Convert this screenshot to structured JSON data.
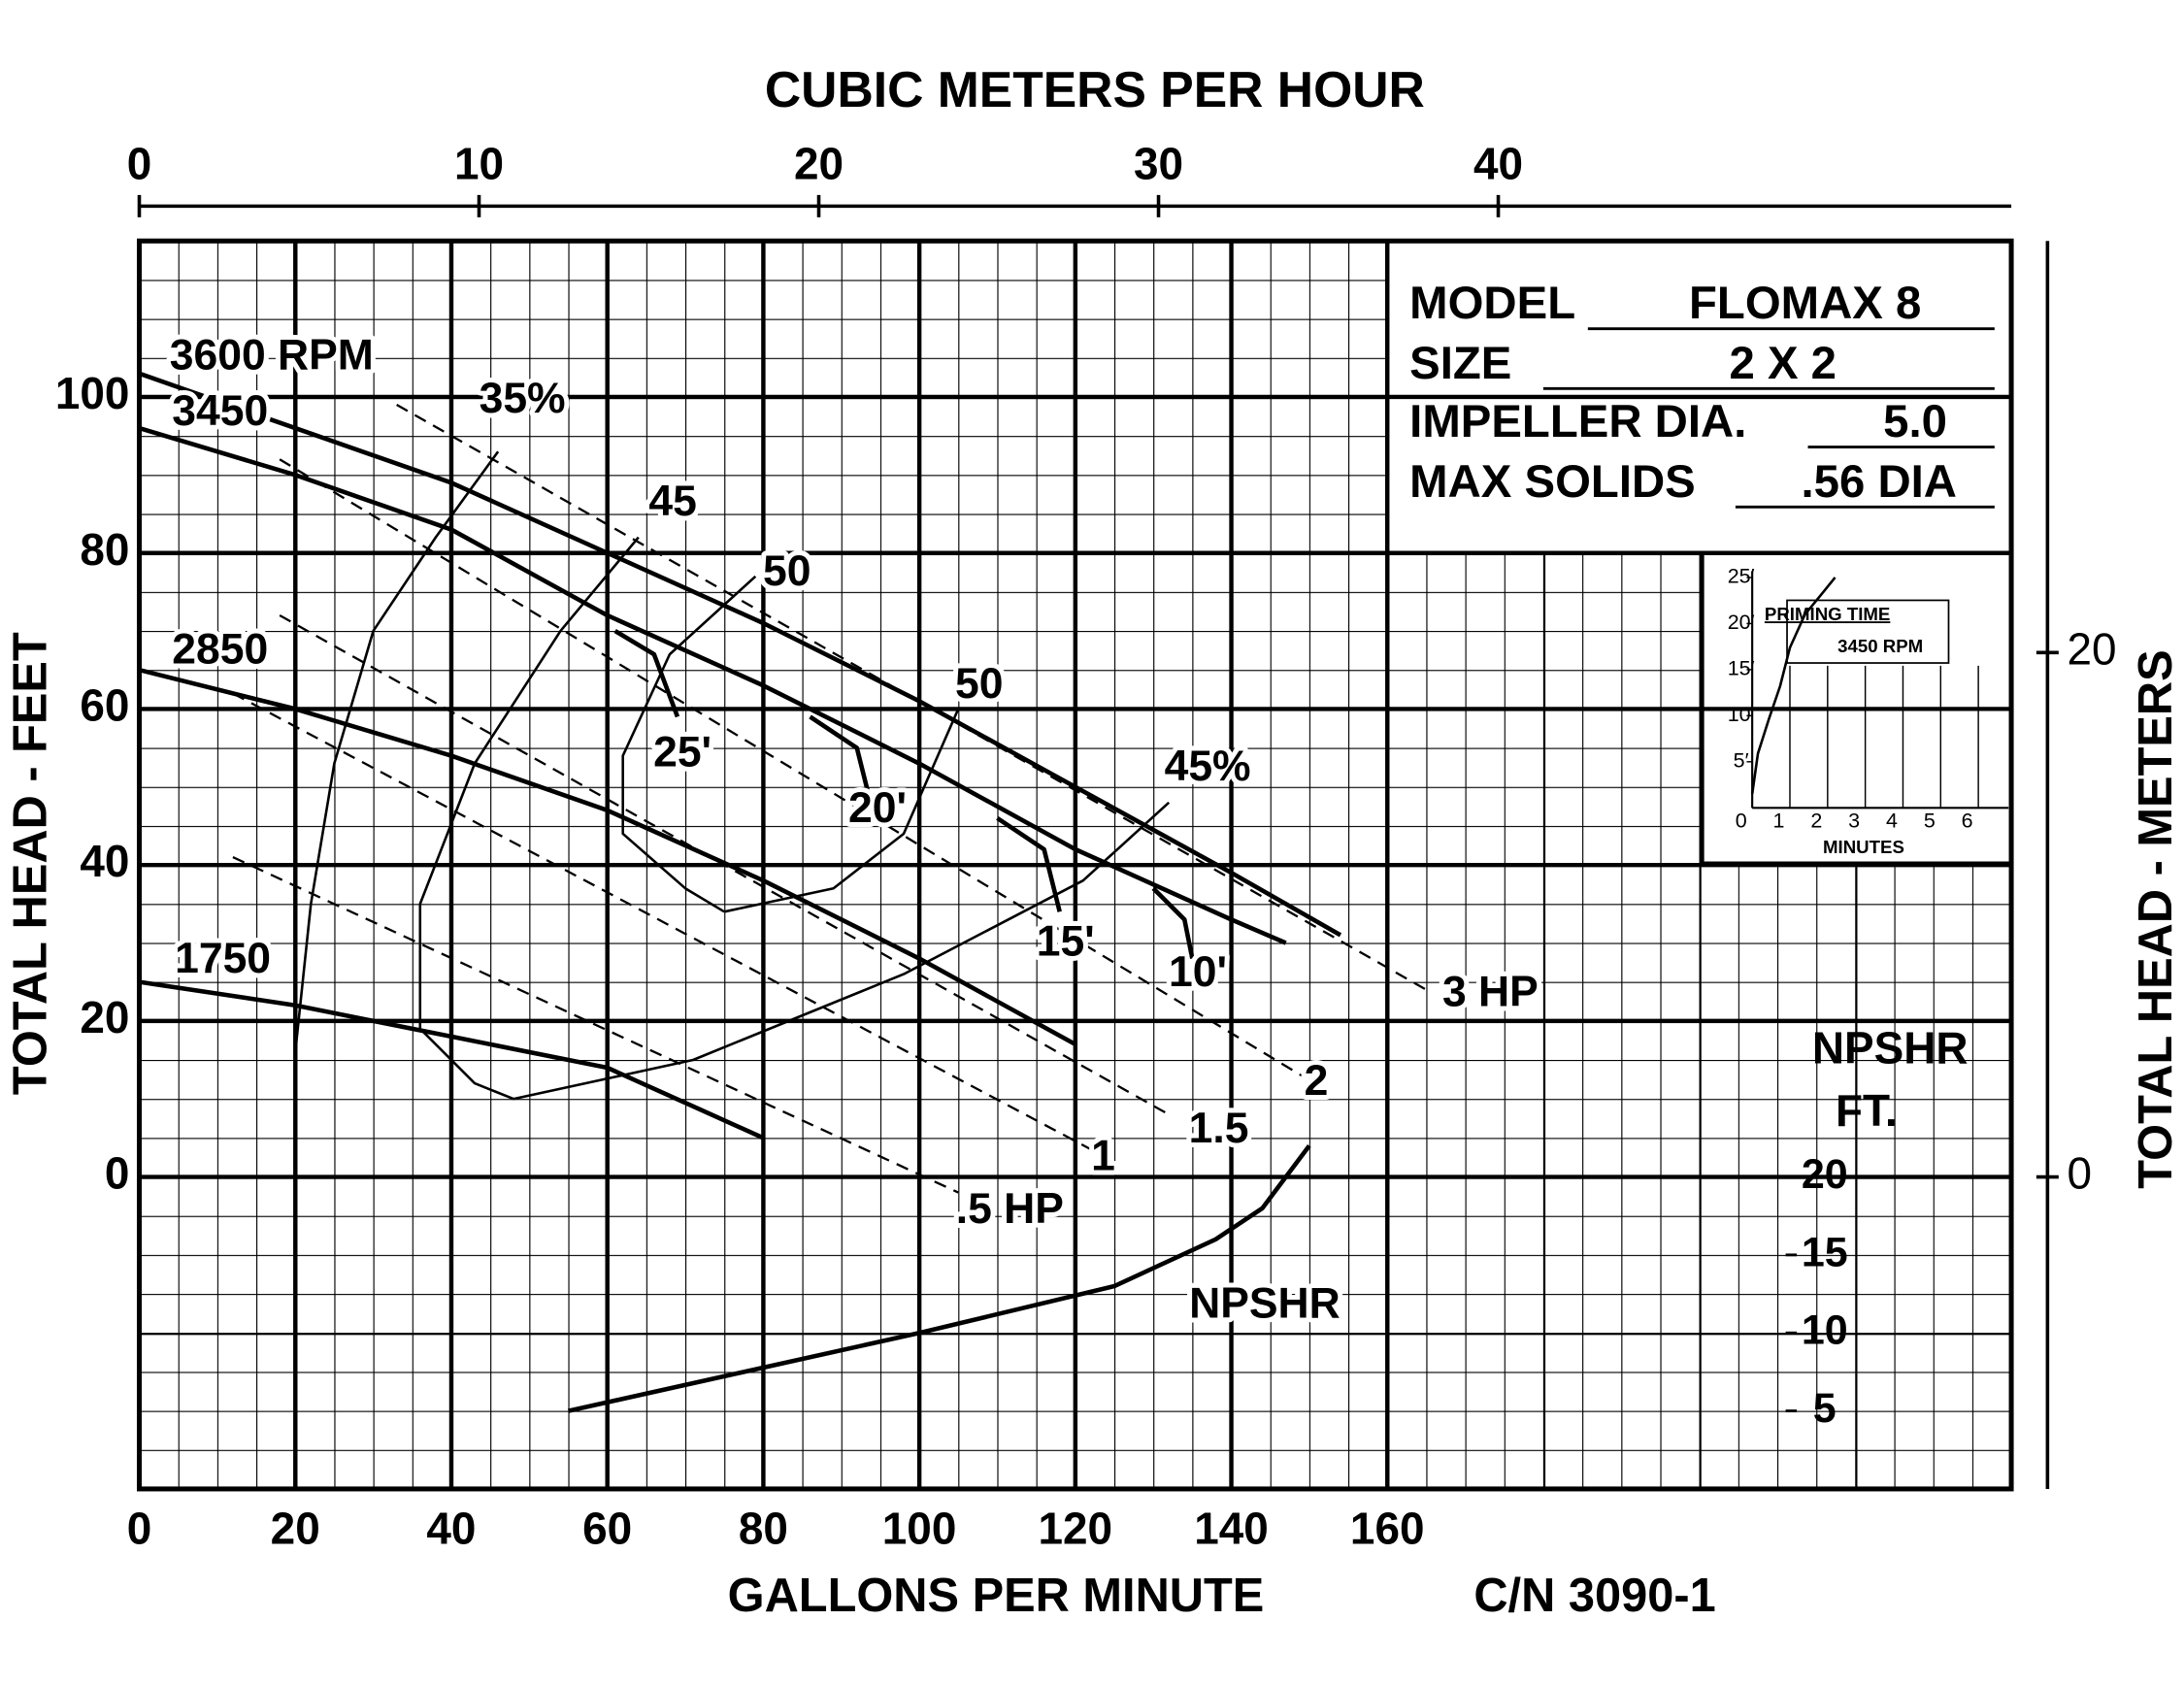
{
  "chart_data": [
    {
      "type": "line",
      "x_label": "GALLONS PER MINUTE",
      "y_label": "TOTAL HEAD - FEET",
      "x2_label": "CUBIC METERS PER HOUR",
      "y2_label": "TOTAL HEAD - METERS",
      "xlim": [
        0,
        240
      ],
      "ylim": [
        -40,
        120
      ],
      "xticks": [
        0,
        20,
        40,
        60,
        80,
        100,
        120,
        140,
        160
      ],
      "yticks": [
        0,
        20,
        40,
        60,
        80,
        100
      ],
      "x2lim": [
        0,
        55.1
      ],
      "x2ticks": [
        0,
        10,
        20,
        30,
        40
      ],
      "y2lim": [
        -11.9,
        35.7
      ],
      "y2ticks": [
        0,
        20
      ],
      "npshr_axis": {
        "label": "NPSHR",
        "unit": "FT.",
        "lim": [
          0,
          80
        ],
        "ticks": [
          5,
          10,
          15,
          20
        ]
      },
      "grid": true,
      "color": "#000000",
      "series": [
        {
          "name": "3600 RPM",
          "style": "thick",
          "x": [
            0,
            20,
            40,
            60,
            80,
            100,
            120,
            140,
            154
          ],
          "values": [
            103,
            96,
            89,
            80,
            71,
            61,
            50,
            39,
            31
          ]
        },
        {
          "name": "3450",
          "style": "thick",
          "x": [
            0,
            20,
            40,
            60,
            80,
            100,
            120,
            140,
            147
          ],
          "values": [
            96,
            90,
            83,
            72,
            63,
            53,
            42,
            33,
            30
          ]
        },
        {
          "name": "2850",
          "style": "thick",
          "x": [
            0,
            20,
            40,
            60,
            80,
            100,
            120
          ],
          "values": [
            65,
            60,
            54,
            47,
            38,
            28,
            17
          ]
        },
        {
          "name": "1750",
          "style": "thick",
          "x": [
            0,
            20,
            40,
            60,
            80
          ],
          "values": [
            25,
            22,
            18,
            14,
            5
          ]
        },
        {
          "name": "35%",
          "style": "thin",
          "x": [
            20,
            22,
            25,
            30,
            38,
            46
          ],
          "values": [
            16,
            35,
            53,
            70,
            82,
            93
          ]
        },
        {
          "name": "45",
          "style": "thin",
          "x": [
            64,
            54,
            43,
            36,
            36,
            43,
            48
          ],
          "values": [
            82,
            70,
            53,
            35,
            19,
            12,
            10
          ]
        },
        {
          "name": "45%",
          "style": "thin",
          "x": [
            48,
            71,
            98,
            121,
            132
          ],
          "values": [
            10,
            15,
            26,
            38,
            48
          ]
        },
        {
          "name": "50",
          "style": "thin",
          "x": [
            79,
            68,
            62,
            62,
            70,
            75
          ],
          "values": [
            77,
            67,
            54,
            44,
            37,
            34
          ]
        },
        {
          "name": "50",
          "style": "thin",
          "x": [
            75,
            89,
            98,
            105
          ],
          "values": [
            34,
            37,
            44,
            60
          ]
        },
        {
          "name": "3 HP",
          "style": "dashed",
          "x": [
            33,
            165
          ],
          "values": [
            99,
            24
          ]
        },
        {
          "name": "2",
          "style": "dashed",
          "x": [
            18,
            149
          ],
          "values": [
            92,
            13
          ]
        },
        {
          "name": "1.5",
          "style": "dashed",
          "x": [
            18,
            132
          ],
          "values": [
            72,
            8
          ]
        },
        {
          "name": "1",
          "style": "dashed",
          "x": [
            12,
            123
          ],
          "values": [
            62,
            3
          ]
        },
        {
          "name": ".5 HP",
          "style": "dashed",
          "x": [
            12,
            105
          ],
          "values": [
            41,
            -2
          ]
        },
        {
          "name": "25'",
          "style": "thick",
          "x": [
            61,
            66,
            69
          ],
          "values": [
            70,
            67,
            59
          ]
        },
        {
          "name": "20'",
          "style": "thick",
          "x": [
            86,
            92,
            94
          ],
          "values": [
            59,
            55,
            47
          ]
        },
        {
          "name": "15'",
          "style": "thick",
          "x": [
            110,
            116,
            118
          ],
          "values": [
            46,
            42,
            34
          ]
        },
        {
          "name": "10'",
          "style": "thick",
          "x": [
            130,
            134,
            135
          ],
          "values": [
            37,
            33,
            28
          ]
        },
        {
          "name": "NPSHR",
          "style": "thick",
          "axis": "npshr",
          "x": [
            55,
            100,
            125,
            138,
            144,
            150
          ],
          "values": [
            5,
            10,
            13,
            16,
            18,
            22
          ]
        }
      ]
    },
    {
      "type": "line",
      "title": "PRIMING TIME",
      "subtitle": "3450 RPM",
      "x_label": "MINUTES",
      "xlim": [
        0,
        6.8
      ],
      "ylim": [
        0,
        25.7
      ],
      "xticks": [
        0,
        1,
        2,
        3,
        4,
        5,
        6
      ],
      "yticks": [
        {
          "value": 5,
          "label": "5′"
        },
        {
          "value": 10,
          "label": "10′"
        },
        {
          "value": 15,
          "label": "15′"
        },
        {
          "value": 20,
          "label": "20′"
        },
        {
          "value": 25,
          "label": "25′"
        }
      ],
      "series": [
        {
          "x": [
            0,
            0.15,
            0.44,
            0.74,
            1,
            1.4,
            1.9,
            2.2
          ],
          "values": [
            1.5,
            5.9,
            9.6,
            13.2,
            17.4,
            21,
            23.5,
            25
          ]
        }
      ]
    }
  ],
  "spec_box": {
    "rows": [
      {
        "label": "MODEL",
        "value": "FLOMAX 8"
      },
      {
        "label": "SIZE",
        "value": "2 X 2"
      },
      {
        "label": "IMPELLER DIA.",
        "value": "5.0"
      },
      {
        "label": "MAX SOLIDS",
        "value": ".56 DIA"
      }
    ]
  },
  "drawing_number": "C/N 3090-1"
}
